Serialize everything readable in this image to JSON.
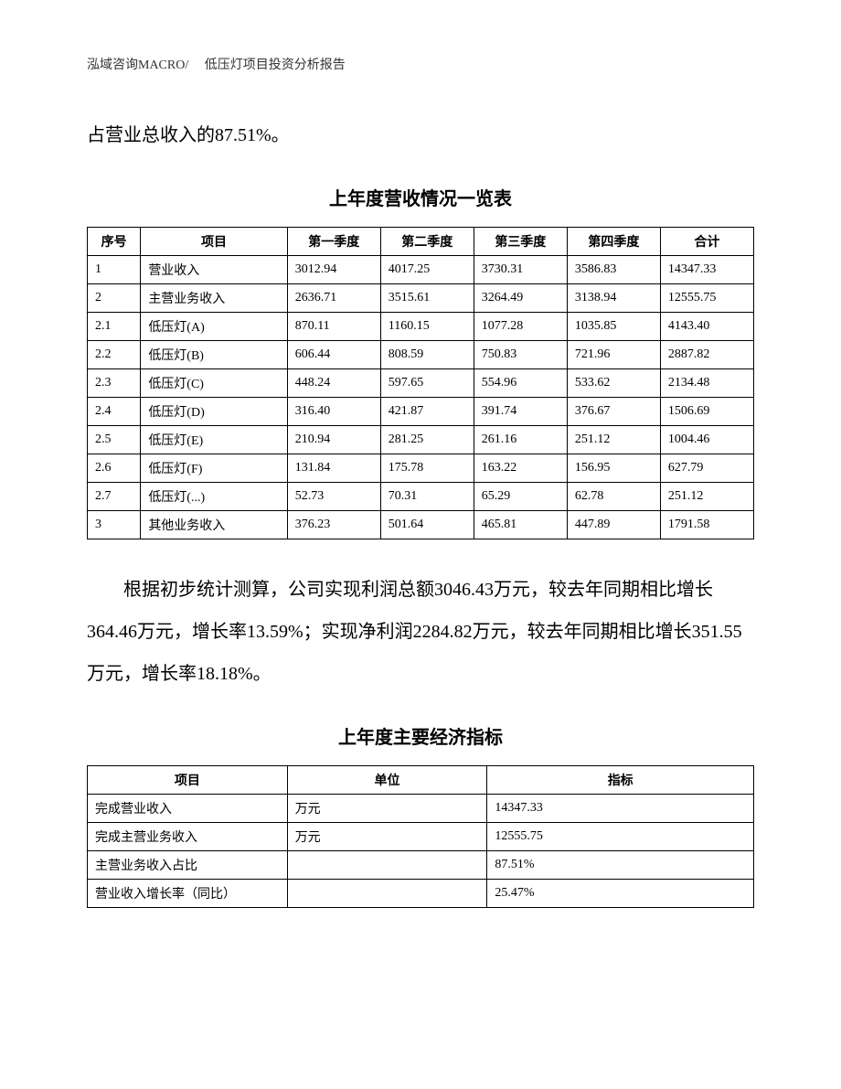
{
  "header": "泓域咨询MACRO/　 低压灯项目投资分析报告",
  "para1": "占营业总收入的87.51%。",
  "table1_title": "上年度营收情况一览表",
  "table1": {
    "columns": [
      "序号",
      "项目",
      "第一季度",
      "第二季度",
      "第三季度",
      "第四季度",
      "合计"
    ],
    "rows": [
      [
        "1",
        "营业收入",
        "3012.94",
        "4017.25",
        "3730.31",
        "3586.83",
        "14347.33"
      ],
      [
        "2",
        "主营业务收入",
        "2636.71",
        "3515.61",
        "3264.49",
        "3138.94",
        "12555.75"
      ],
      [
        "2.1",
        "低压灯(A)",
        "870.11",
        "1160.15",
        "1077.28",
        "1035.85",
        "4143.40"
      ],
      [
        "2.2",
        "低压灯(B)",
        "606.44",
        "808.59",
        "750.83",
        "721.96",
        "2887.82"
      ],
      [
        "2.3",
        "低压灯(C)",
        "448.24",
        "597.65",
        "554.96",
        "533.62",
        "2134.48"
      ],
      [
        "2.4",
        "低压灯(D)",
        "316.40",
        "421.87",
        "391.74",
        "376.67",
        "1506.69"
      ],
      [
        "2.5",
        "低压灯(E)",
        "210.94",
        "281.25",
        "261.16",
        "251.12",
        "1004.46"
      ],
      [
        "2.6",
        "低压灯(F)",
        "131.84",
        "175.78",
        "163.22",
        "156.95",
        "627.79"
      ],
      [
        "2.7",
        "低压灯(...)",
        "52.73",
        "70.31",
        "65.29",
        "62.78",
        "251.12"
      ],
      [
        "3",
        "其他业务收入",
        "376.23",
        "501.64",
        "465.81",
        "447.89",
        "1791.58"
      ]
    ]
  },
  "para2": "根据初步统计测算，公司实现利润总额3046.43万元，较去年同期相比增长364.46万元，增长率13.59%；实现净利润2284.82万元，较去年同期相比增长351.55万元，增长率18.18%。",
  "table2_title": "上年度主要经济指标",
  "table2": {
    "columns": [
      "项目",
      "单位",
      "指标"
    ],
    "rows": [
      [
        "完成营业收入",
        "万元",
        "14347.33"
      ],
      [
        "完成主营业务收入",
        "万元",
        "12555.75"
      ],
      [
        "主营业务收入占比",
        "",
        "87.51%"
      ],
      [
        "营业收入增长率（同比）",
        "",
        "25.47%"
      ]
    ]
  }
}
